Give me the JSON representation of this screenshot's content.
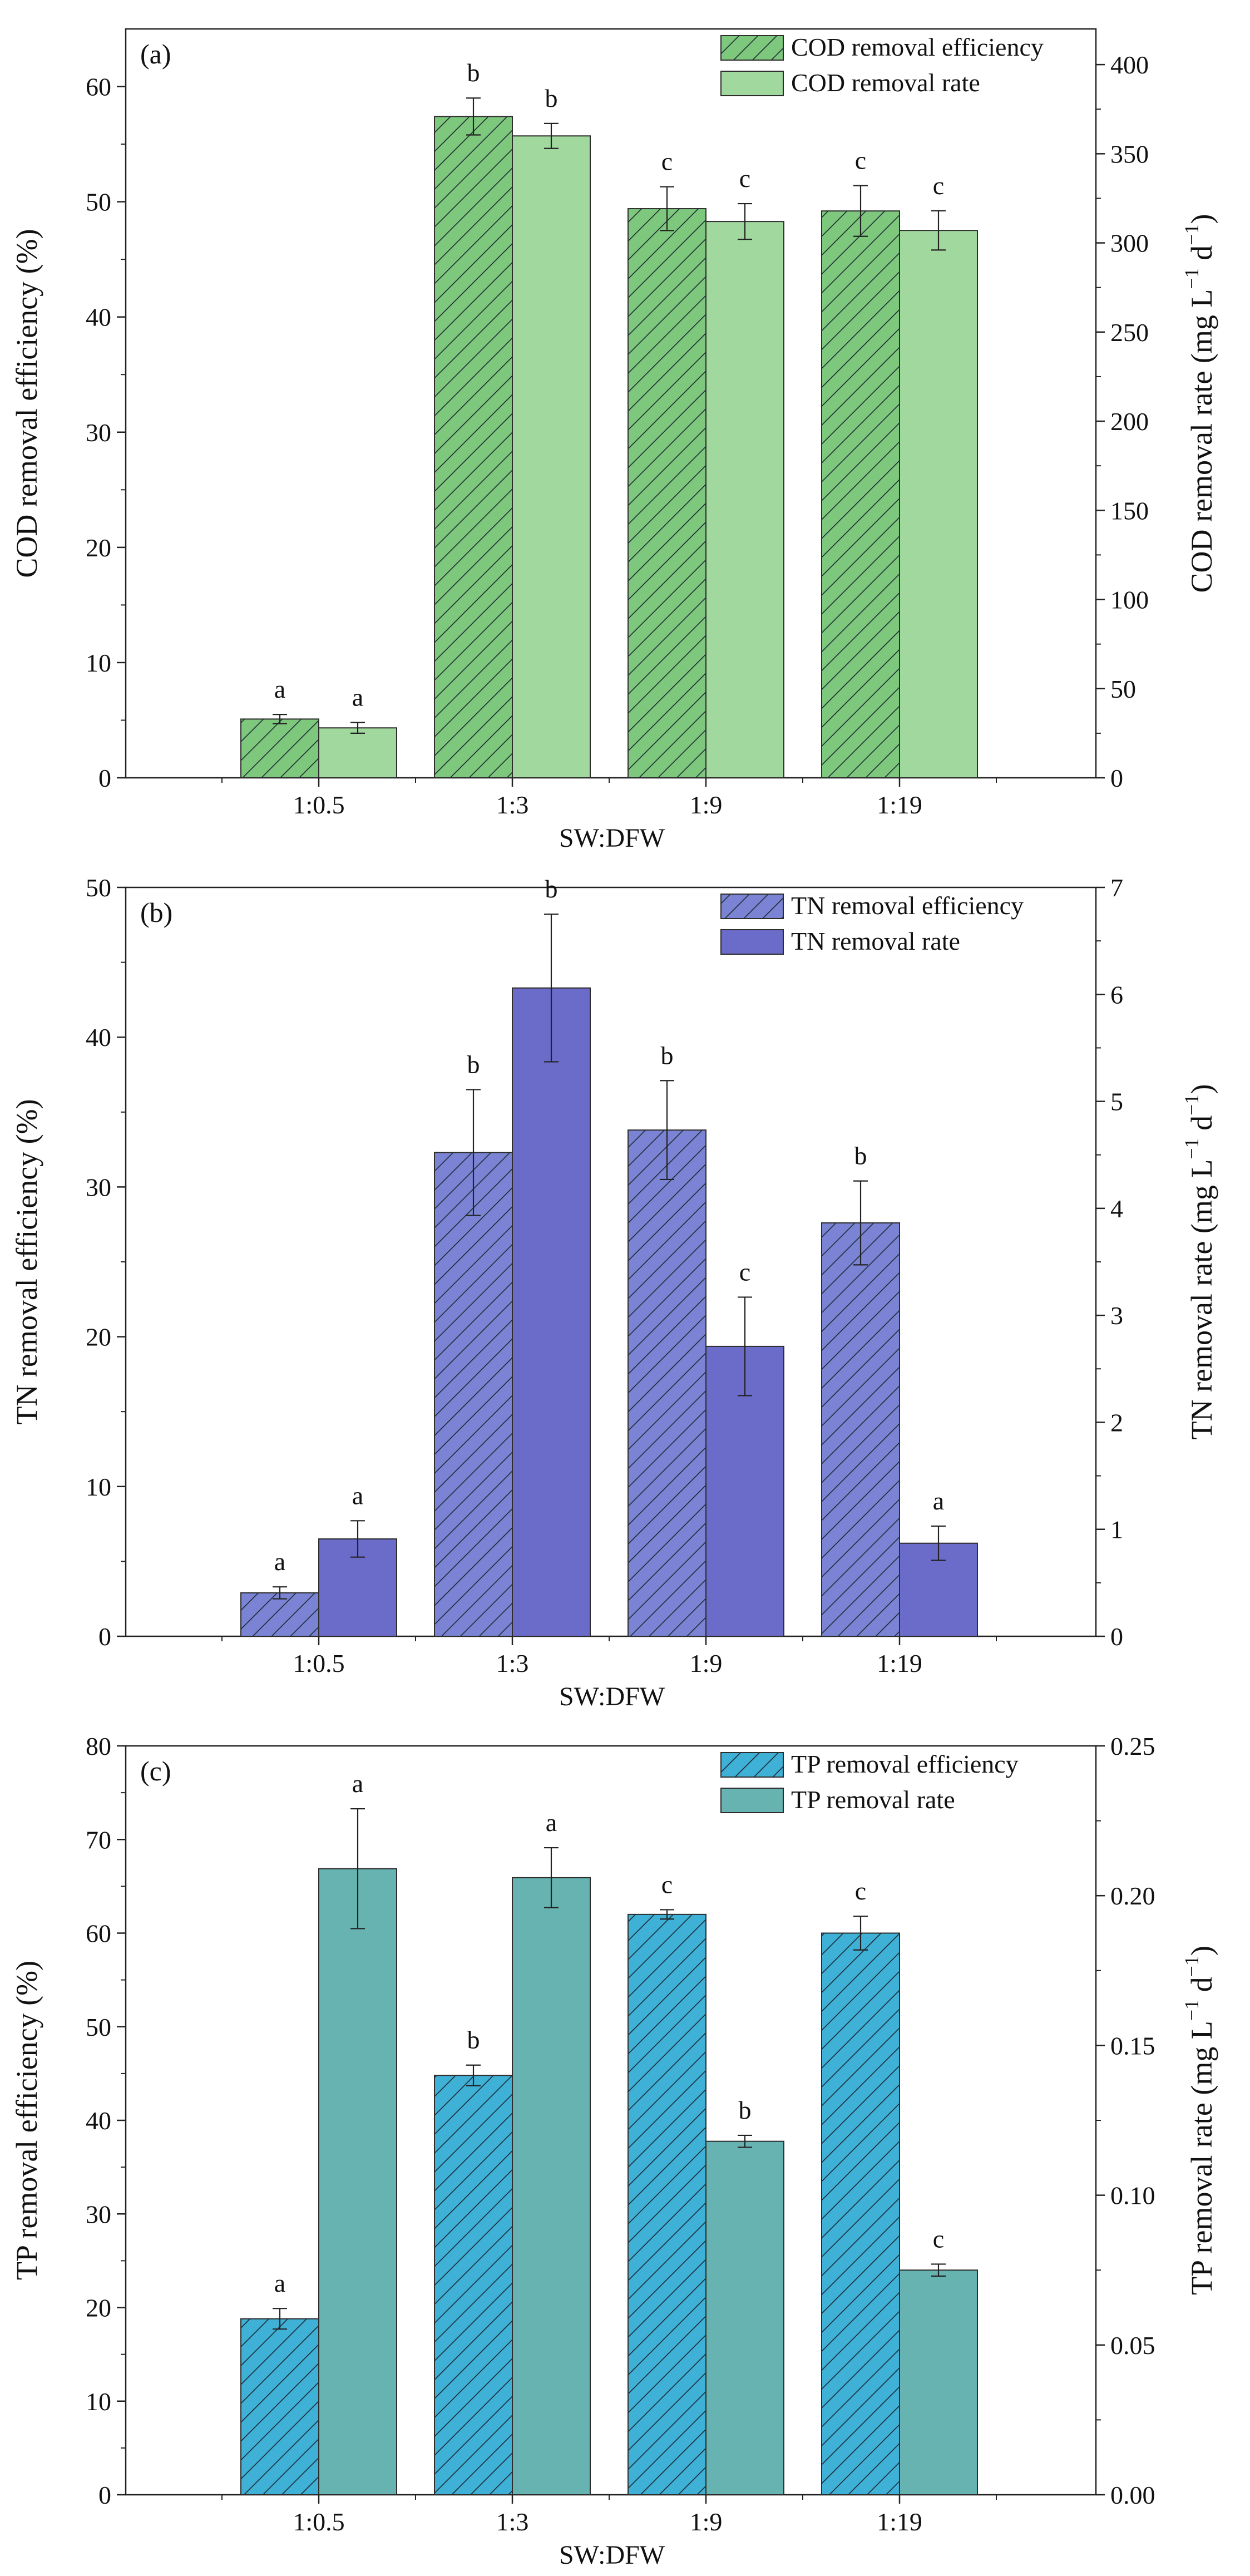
{
  "chart_data": [
    {
      "type": "bar",
      "panel_label": "(a)",
      "categories": [
        "1:0.5",
        "1:3",
        "1:9",
        "1:19"
      ],
      "xlabel": "SW:DFW",
      "ylabel": "COD removal efficiency (%)",
      "ylabel2": {
        "base": "COD removal rate (mg L",
        "sup1": "−1",
        "mid": "  d",
        "sup2": "−1",
        "end": ")"
      },
      "ylim": [
        0,
        65
      ],
      "yticks": [
        0,
        10,
        20,
        30,
        40,
        50,
        60
      ],
      "ylim2": [
        0,
        420
      ],
      "yticks2": [
        0,
        50,
        100,
        150,
        200,
        250,
        300,
        350,
        400
      ],
      "legend_position": "top-right",
      "series": [
        {
          "name": "COD removal efficiency",
          "axis": "left",
          "color": "#7ec87e",
          "hatched": true,
          "values": [
            5.1,
            57.4,
            49.4,
            49.2
          ],
          "errors": [
            0.4,
            1.6,
            1.9,
            2.2
          ],
          "letters": [
            "a",
            "b",
            "c",
            "c"
          ]
        },
        {
          "name": "COD removal rate",
          "axis": "right",
          "color": "#a0d89e",
          "hatched": false,
          "values": [
            28,
            360,
            312,
            307
          ],
          "errors": [
            3,
            7,
            10,
            11
          ],
          "letters": [
            "a",
            "b",
            "c",
            "c"
          ]
        }
      ]
    },
    {
      "type": "bar",
      "panel_label": "(b)",
      "categories": [
        "1:0.5",
        "1:3",
        "1:9",
        "1:19"
      ],
      "xlabel": "SW:DFW",
      "ylabel": "TN removal efficiency (%)",
      "ylabel2": {
        "base": "TN removal rate (mg L",
        "sup1": "−1",
        "mid": "  d",
        "sup2": "−1",
        "end": ")"
      },
      "ylim": [
        0,
        50
      ],
      "yticks": [
        0,
        10,
        20,
        30,
        40,
        50
      ],
      "ylim2": [
        0,
        7
      ],
      "yticks2": [
        0,
        1,
        2,
        3,
        4,
        5,
        6,
        7
      ],
      "legend_position": "top-right",
      "series": [
        {
          "name": "TN removal efficiency",
          "axis": "left",
          "color": "#7b84d4",
          "hatched": true,
          "values": [
            2.9,
            32.3,
            33.8,
            27.6
          ],
          "errors": [
            0.4,
            4.2,
            3.3,
            2.8
          ],
          "letters": [
            "a",
            "b",
            "b",
            "b"
          ]
        },
        {
          "name": "TN removal rate",
          "axis": "right",
          "color": "#6b6bca",
          "hatched": false,
          "values": [
            0.91,
            6.06,
            2.71,
            0.87
          ],
          "errors": [
            0.17,
            0.69,
            0.46,
            0.16
          ],
          "letters": [
            "a",
            "b",
            "c",
            "a"
          ]
        }
      ]
    },
    {
      "type": "bar",
      "panel_label": "(c)",
      "categories": [
        "1:0.5",
        "1:3",
        "1:9",
        "1:19"
      ],
      "xlabel": "SW:DFW",
      "ylabel": "TP removal efficiency (%)",
      "ylabel2": {
        "base": "TP removal rate (mg L",
        "sup1": "−1",
        "mid": "  d",
        "sup2": "−1",
        "end": ")"
      },
      "ylim": [
        0,
        80
      ],
      "yticks": [
        0,
        10,
        20,
        30,
        40,
        50,
        60,
        70,
        80
      ],
      "ylim2": [
        0,
        0.25
      ],
      "yticks2": [
        "0.00",
        "0.05",
        "0.10",
        "0.15",
        "0.20",
        "0.25"
      ],
      "legend_position": "top-right",
      "series": [
        {
          "name": "TP removal efficiency",
          "axis": "left",
          "color": "#3fb0d6",
          "hatched": true,
          "values": [
            18.8,
            44.8,
            62.0,
            60.0
          ],
          "errors": [
            1.1,
            1.1,
            0.5,
            1.8
          ],
          "letters": [
            "a",
            "b",
            "c",
            "c"
          ]
        },
        {
          "name": "TP removal rate",
          "axis": "right",
          "color": "#66b3b1",
          "hatched": false,
          "values": [
            0.209,
            0.206,
            0.118,
            0.075
          ],
          "errors": [
            0.02,
            0.01,
            0.002,
            0.002
          ],
          "letters": [
            "a",
            "a",
            "b",
            "c"
          ]
        }
      ]
    }
  ]
}
